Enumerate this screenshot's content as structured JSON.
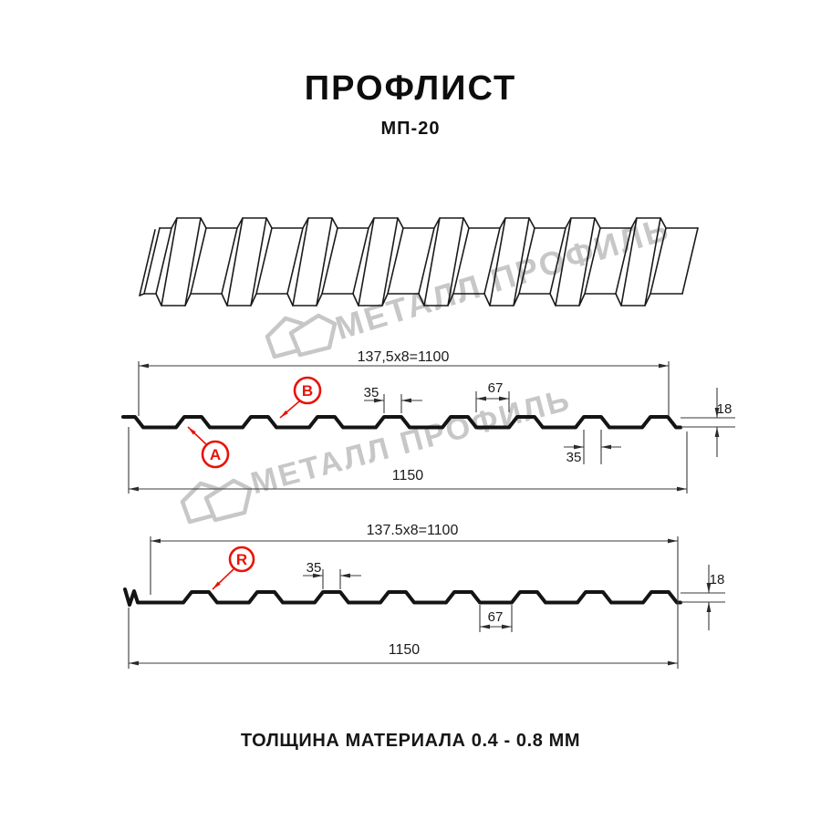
{
  "page": {
    "title": "ПРОФЛИСТ",
    "subtitle": "МП-20",
    "footer": "ТОЛЩИНА МАТЕРИАЛА 0.4 - 0.8 ММ"
  },
  "watermark": {
    "brand": "МЕТАЛЛ ПРОФИЛЬ"
  },
  "section1": {
    "label_a": "A",
    "label_b": "B",
    "dim_pitch": "137,5x8=1100",
    "dim_rib_top": "35",
    "dim_valley": "67",
    "dim_rib_bottom": "35",
    "dim_height": "18",
    "dim_total": "1150"
  },
  "section2": {
    "label_r": "R",
    "dim_pitch": "137.5x8=1100",
    "dim_rib_top": "35",
    "dim_valley": "67",
    "dim_height": "18",
    "dim_total": "1150"
  },
  "colors": {
    "accent_red": "#e81309",
    "line": "#3a3a3a",
    "watermark": "#c7c7c7"
  }
}
